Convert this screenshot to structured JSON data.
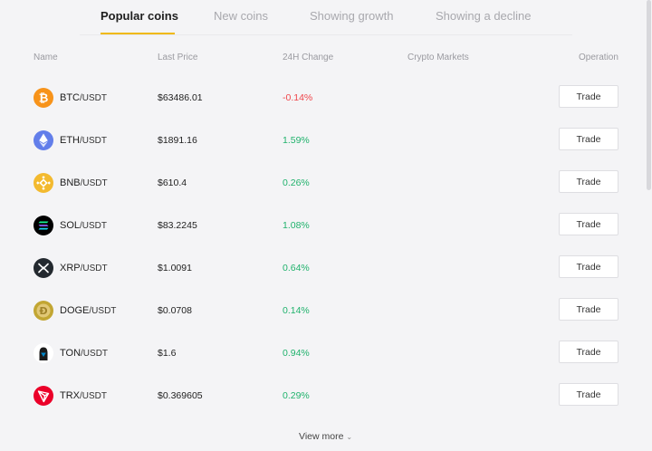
{
  "tabs": [
    {
      "label": "Popular coins",
      "active": true
    },
    {
      "label": "New coins",
      "active": false
    },
    {
      "label": "Showing growth",
      "active": false
    },
    {
      "label": "Showing a decline",
      "active": false
    }
  ],
  "columns": {
    "name": "Name",
    "last_price": "Last Price",
    "change_24h": "24H Change",
    "markets": "Crypto Markets",
    "operation": "Operation"
  },
  "rows": [
    {
      "base": "BTC",
      "quote": "/USDT",
      "price": "$63486.01",
      "change": "-0.14%",
      "direction": "down",
      "icon": "bitcoin-icon",
      "color": "#f7931a",
      "button": "Trade"
    },
    {
      "base": "ETH",
      "quote": "/USDT",
      "price": "$1891.16",
      "change": "1.59%",
      "direction": "up",
      "icon": "ethereum-icon",
      "color": "#627eea",
      "button": "Trade"
    },
    {
      "base": "BNB",
      "quote": "/USDT",
      "price": "$610.4",
      "change": "0.26%",
      "direction": "up",
      "icon": "bnb-icon",
      "color": "#f3ba2f",
      "button": "Trade"
    },
    {
      "base": "SOL",
      "quote": "/USDT",
      "price": "$83.2245",
      "change": "1.08%",
      "direction": "up",
      "icon": "solana-icon",
      "color": "#000000",
      "button": "Trade"
    },
    {
      "base": "XRP",
      "quote": "/USDT",
      "price": "$1.0091",
      "change": "0.64%",
      "direction": "up",
      "icon": "xrp-icon",
      "color": "#23292f",
      "button": "Trade"
    },
    {
      "base": "DOGE",
      "quote": "/USDT",
      "price": "$0.0708",
      "change": "0.14%",
      "direction": "up",
      "icon": "dogecoin-icon",
      "color": "#c2a633",
      "button": "Trade"
    },
    {
      "base": "TON",
      "quote": "/USDT",
      "price": "$1.6",
      "change": "0.94%",
      "direction": "up",
      "icon": "ton-icon",
      "color": "#0088cc",
      "button": "Trade"
    },
    {
      "base": "TRX",
      "quote": "/USDT",
      "price": "$0.369605",
      "change": "0.29%",
      "direction": "up",
      "icon": "tron-icon",
      "color": "#eb0029",
      "button": "Trade"
    }
  ],
  "view_more": "View more",
  "colors": {
    "accent": "#f0b90b",
    "up": "#20b26c",
    "down": "#ef454a",
    "background": "#f4f4f6"
  }
}
